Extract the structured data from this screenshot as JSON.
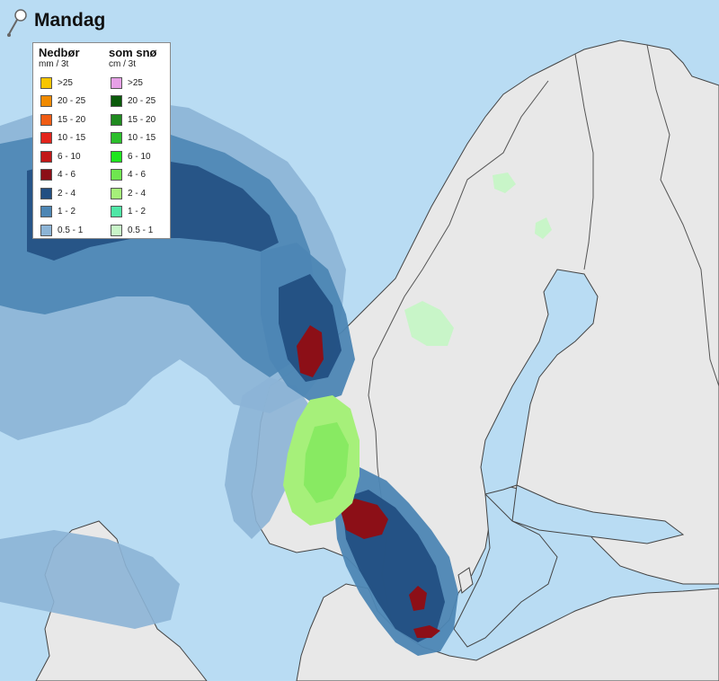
{
  "title": "Mandag",
  "legend": {
    "precip": {
      "heading": "Nedbør",
      "unit": "mm / 3t",
      "items": [
        {
          "label": ">25",
          "color": "#f7c600"
        },
        {
          "label": "20 - 25",
          "color": "#f08a00"
        },
        {
          "label": "15 - 20",
          "color": "#f05c14"
        },
        {
          "label": "10 - 15",
          "color": "#e3241c"
        },
        {
          "label": "6 - 10",
          "color": "#c21717"
        },
        {
          "label": "4 - 6",
          "color": "#8c0f17"
        },
        {
          "label": "2 - 4",
          "color": "#224f82"
        },
        {
          "label": "1 - 2",
          "color": "#4d86b4"
        },
        {
          "label": "0.5 - 1",
          "color": "#8cb4d6"
        }
      ]
    },
    "snow": {
      "heading": "som snø",
      "unit": "cm / 3t",
      "items": [
        {
          "label": ">25",
          "color": "#e6a0e6"
        },
        {
          "label": "20 - 25",
          "color": "#0a5a0a"
        },
        {
          "label": "15 - 20",
          "color": "#1f8a1f"
        },
        {
          "label": "10 - 15",
          "color": "#2bbf2b"
        },
        {
          "label": "6 - 10",
          "color": "#1ee61e"
        },
        {
          "label": "4 - 6",
          "color": "#6fe64f"
        },
        {
          "label": "2 - 4",
          "color": "#a6f07a"
        },
        {
          "label": "1 - 2",
          "color": "#4fe6a6"
        },
        {
          "label": "0.5 - 1",
          "color": "#c8f5c8"
        }
      ]
    }
  },
  "colors": {
    "sea": "#b9dcf3",
    "land": "#e8e8e8",
    "border": "#555555"
  },
  "icon": "pin-icon"
}
